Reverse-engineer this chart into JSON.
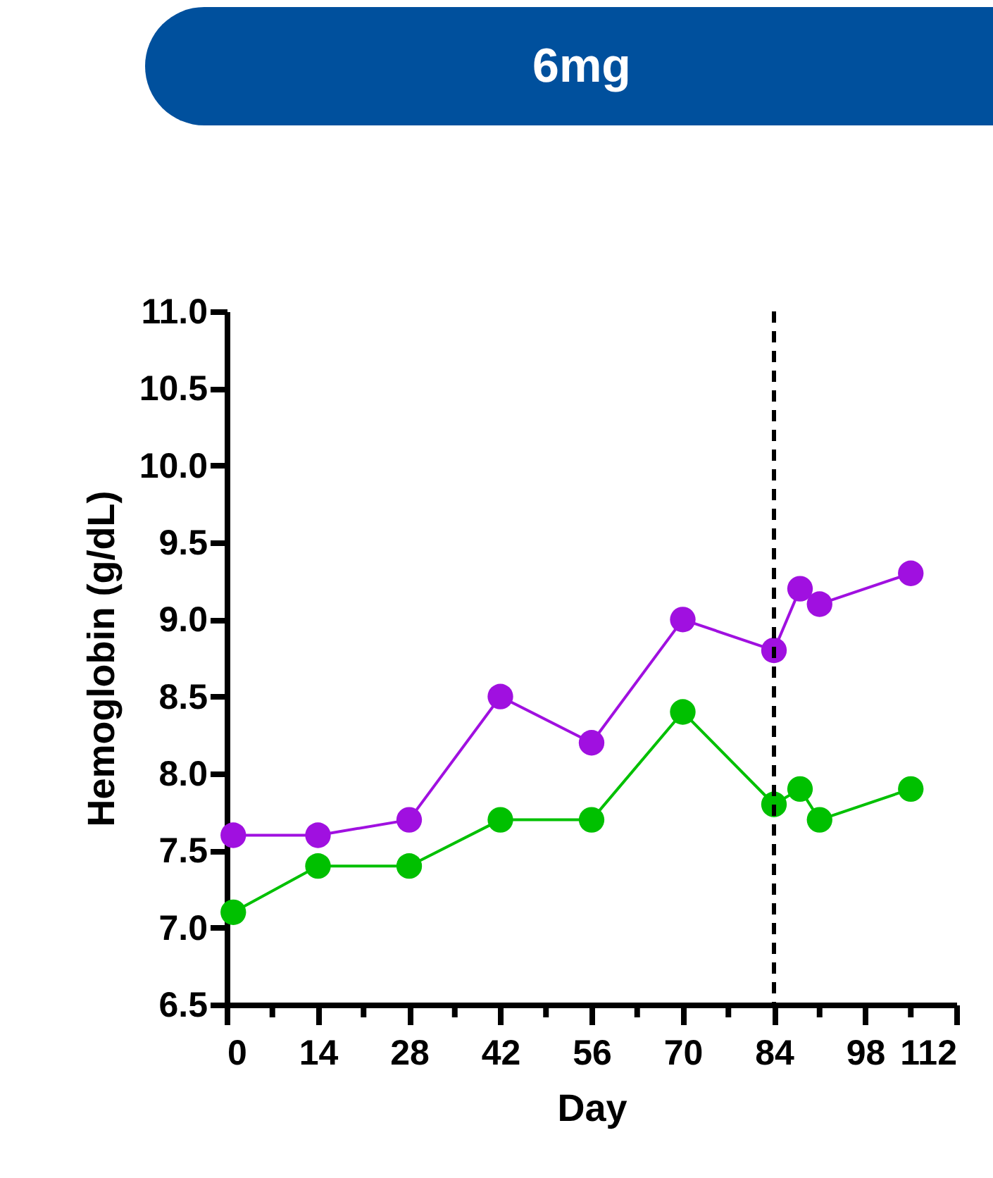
{
  "chart_data": {
    "type": "line",
    "title": "6mg",
    "xlabel": "Day",
    "ylabel": "Hemoglobin (g/dL)",
    "x": [
      1,
      14,
      28,
      42,
      56,
      70,
      84,
      88,
      91,
      105
    ],
    "series": [
      {
        "color": "#a010e0",
        "values": [
          7.6,
          7.6,
          7.7,
          8.5,
          8.2,
          9.0,
          8.8,
          9.2,
          9.1,
          9.3
        ]
      },
      {
        "color": "#00c000",
        "values": [
          7.1,
          7.4,
          7.4,
          7.7,
          7.7,
          8.4,
          7.8,
          7.9,
          7.7,
          7.9
        ]
      }
    ],
    "xlim": [
      0,
      112
    ],
    "xticks": [
      0,
      {
        "value": 7,
        "label": null
      },
      14,
      {
        "value": 21,
        "label": null
      },
      28,
      {
        "value": 35,
        "label": null
      },
      42,
      {
        "value": 49,
        "label": null
      },
      56,
      {
        "value": 63,
        "label": null
      },
      70,
      {
        "value": 77,
        "label": null
      },
      84,
      {
        "value": 91,
        "label": null
      },
      98,
      {
        "value": 105,
        "label": null
      },
      112
    ],
    "ylim": [
      6.5,
      11.0
    ],
    "yticks": [
      6.5,
      {
        "value": 7,
        "label": "7.0"
      },
      7.5,
      {
        "value": 8,
        "label": "8.0"
      },
      8.5,
      {
        "value": 9,
        "label": "9.0"
      },
      9.5,
      {
        "value": 10,
        "label": "10.0"
      },
      10.5,
      {
        "value": 11,
        "label": "11.0"
      }
    ],
    "ref_lines": [
      {
        "axis": "x",
        "value": 84,
        "color": "#000000",
        "line_style": "dashed"
      }
    ],
    "marker": "circle",
    "line_style": "solid",
    "grid": false,
    "legend": false
  }
}
